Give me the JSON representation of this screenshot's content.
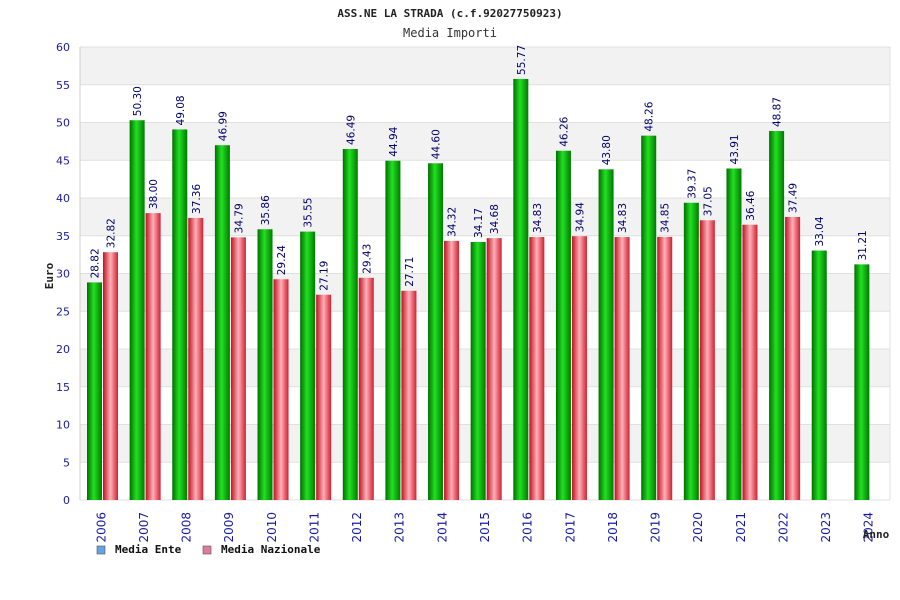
{
  "chart_data": {
    "type": "bar",
    "title": "ASS.NE LA STRADA (c.f.92027750923)",
    "subtitle": "Media Importi",
    "ylabel": "Euro",
    "xlabel": "Anno",
    "ylim": [
      0,
      60
    ],
    "yticks": [
      0,
      5,
      10,
      15,
      20,
      25,
      30,
      35,
      40,
      45,
      50,
      55,
      60
    ],
    "grid": true,
    "legend_position": "bottom-left",
    "categories": [
      "2006",
      "2007",
      "2008",
      "2009",
      "2010",
      "2011",
      "2012",
      "2013",
      "2014",
      "2015",
      "2016",
      "2017",
      "2018",
      "2019",
      "2020",
      "2021",
      "2022",
      "2023",
      "2024"
    ],
    "series": [
      {
        "name": "Media Ente",
        "color": "#00c000",
        "legend_color": "#66a3e0",
        "values": [
          28.82,
          50.3,
          49.08,
          46.99,
          35.86,
          35.55,
          46.49,
          44.94,
          44.6,
          34.17,
          55.77,
          46.26,
          43.8,
          48.26,
          39.37,
          43.91,
          48.87,
          33.04,
          31.21
        ],
        "labels": [
          "28.82",
          "50.30",
          "49.08",
          "46.99",
          "35.86",
          "35.55",
          "46.49",
          "44.94",
          "44.60",
          "34.17",
          "55.77",
          "46.26",
          "43.80",
          "48.26",
          "39.37",
          "43.91",
          "48.87",
          "33.04",
          "31.21"
        ]
      },
      {
        "name": "Media Nazionale",
        "color": "#e8303c",
        "legend_color": "#e07a9a",
        "values": [
          32.82,
          38.0,
          37.36,
          34.79,
          29.24,
          27.19,
          29.43,
          27.71,
          34.32,
          34.68,
          34.83,
          34.94,
          34.83,
          34.85,
          37.05,
          36.46,
          37.49,
          null,
          null
        ],
        "labels": [
          "32.82",
          "38.00",
          "37.36",
          "34.79",
          "29.24",
          "27.19",
          "29.43",
          "27.71",
          "34.32",
          "34.68",
          "34.83",
          "34.94",
          "34.83",
          "34.85",
          "37.05",
          "36.46",
          "37.49",
          null,
          null
        ]
      }
    ]
  }
}
